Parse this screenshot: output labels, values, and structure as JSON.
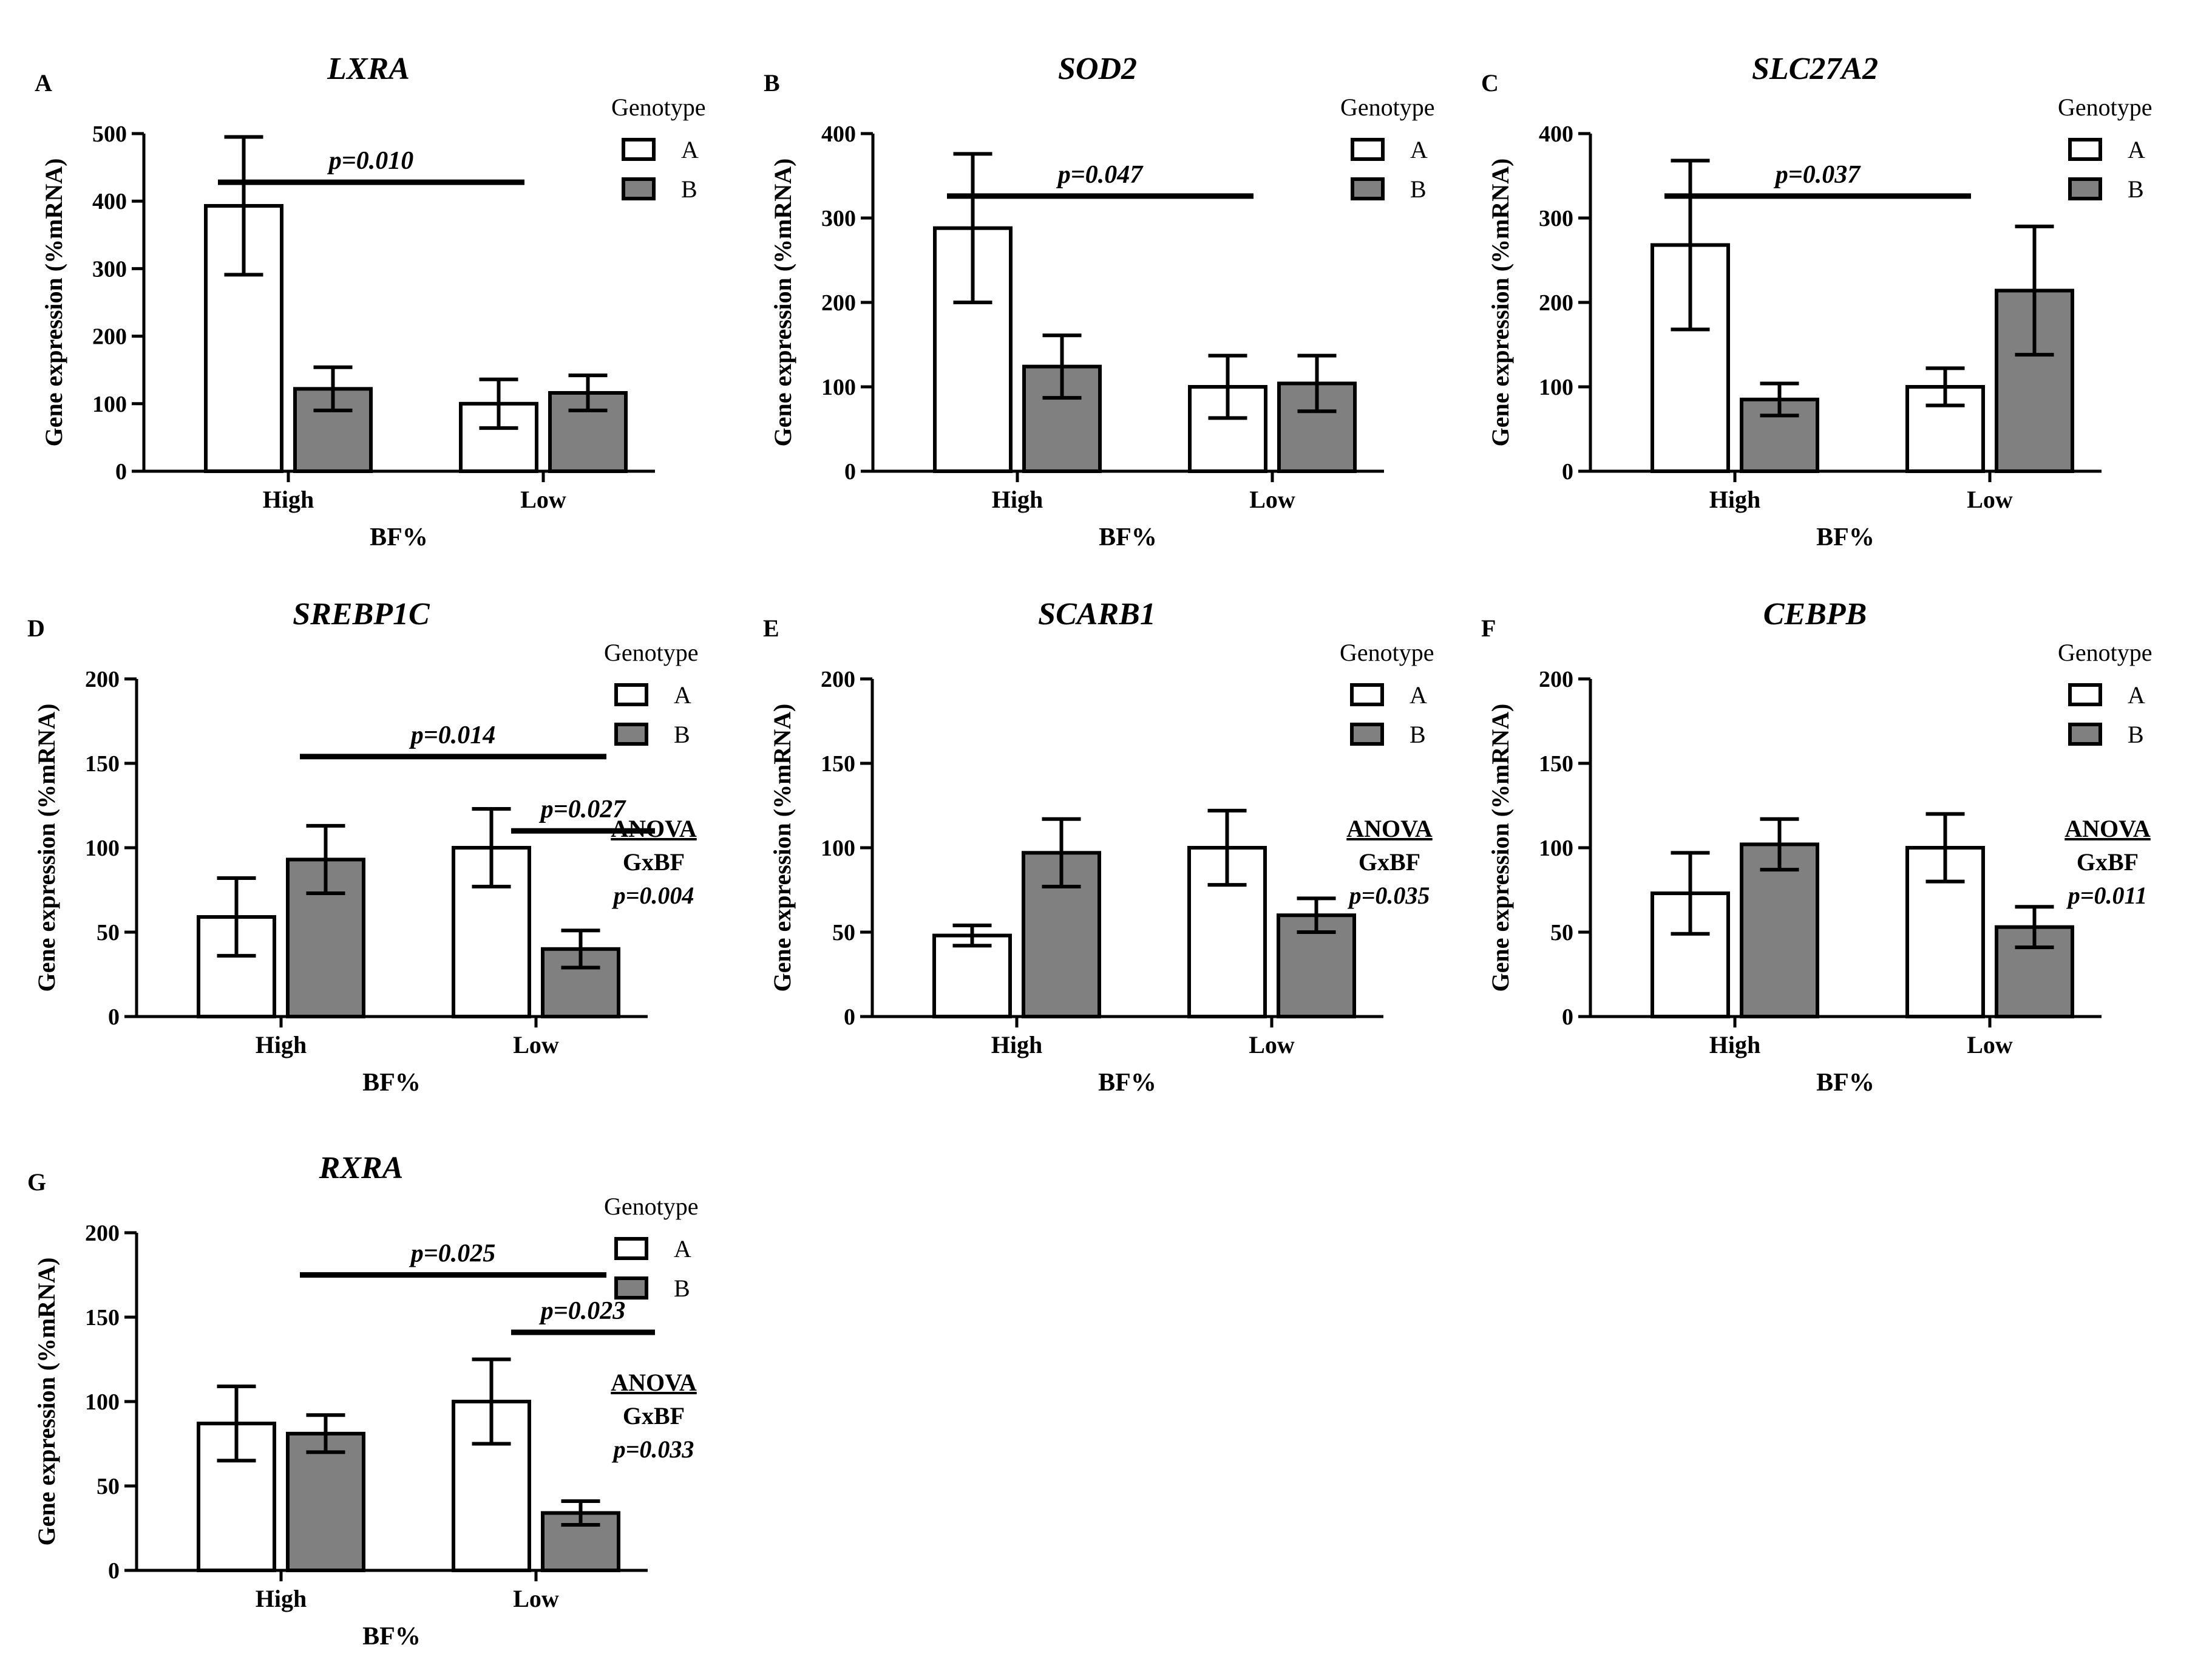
{
  "colors": {
    "A": "#ffffff",
    "B": "#808080",
    "stroke": "#000000"
  },
  "chart_data": [
    {
      "panel": "A",
      "type": "bar",
      "title": "LXRA",
      "xlabel": "BF%",
      "ylabel": "Gene expression (%mRNA)",
      "categories": [
        "High",
        "Low"
      ],
      "ylim": [
        0,
        500
      ],
      "yticks": [
        0,
        100,
        200,
        300,
        400,
        500
      ],
      "legend_title": "Genotype",
      "series": [
        {
          "name": "A",
          "values": [
            393,
            100
          ],
          "errors": [
            102,
            36
          ]
        },
        {
          "name": "B",
          "values": [
            122,
            116
          ],
          "errors": [
            32,
            26
          ]
        }
      ],
      "brackets": [
        {
          "from": [
            0,
            0
          ],
          "to": [
            1,
            0
          ],
          "label": "p=0.010",
          "y": 428
        }
      ],
      "anova": null
    },
    {
      "panel": "B",
      "type": "bar",
      "title": "SOD2",
      "xlabel": "BF%",
      "ylabel": "Gene expression (%mRNA)",
      "categories": [
        "High",
        "Low"
      ],
      "ylim": [
        0,
        400
      ],
      "yticks": [
        0,
        100,
        200,
        300,
        400
      ],
      "legend_title": "Genotype",
      "series": [
        {
          "name": "A",
          "values": [
            288,
            100
          ],
          "errors": [
            88,
            37
          ]
        },
        {
          "name": "B",
          "values": [
            124,
            104
          ],
          "errors": [
            37,
            33
          ]
        }
      ],
      "brackets": [
        {
          "from": [
            0,
            0
          ],
          "to": [
            1,
            0
          ],
          "label": "p=0.047",
          "y": 326
        }
      ],
      "anova": null
    },
    {
      "panel": "C",
      "type": "bar",
      "title": "SLC27A2",
      "xlabel": "BF%",
      "ylabel": "Gene expression (%mRNA)",
      "categories": [
        "High",
        "Low"
      ],
      "ylim": [
        0,
        400
      ],
      "yticks": [
        0,
        100,
        200,
        300,
        400
      ],
      "legend_title": "Genotype",
      "series": [
        {
          "name": "A",
          "values": [
            268,
            100
          ],
          "errors": [
            100,
            22
          ]
        },
        {
          "name": "B",
          "values": [
            85,
            214
          ],
          "errors": [
            19,
            76
          ]
        }
      ],
      "brackets": [
        {
          "from": [
            0,
            0
          ],
          "to": [
            1,
            0
          ],
          "label": "p=0.037",
          "y": 326
        }
      ],
      "anova": null
    },
    {
      "panel": "D",
      "type": "bar",
      "title": "SREBP1C",
      "xlabel": "BF%",
      "ylabel": "Gene expression (%mRNA)",
      "categories": [
        "High",
        "Low"
      ],
      "ylim": [
        0,
        200
      ],
      "yticks": [
        0,
        50,
        100,
        150,
        200
      ],
      "legend_title": "Genotype",
      "series": [
        {
          "name": "A",
          "values": [
            59,
            100
          ],
          "errors": [
            23,
            23
          ]
        },
        {
          "name": "B",
          "values": [
            93,
            40
          ],
          "errors": [
            20,
            11
          ]
        }
      ],
      "brackets": [
        {
          "from": [
            0,
            1
          ],
          "to": [
            1,
            1
          ],
          "label": "p=0.014",
          "y": 154
        },
        {
          "from": [
            1,
            0
          ],
          "to": [
            1,
            1
          ],
          "label": "p=0.027",
          "y": 110
        }
      ],
      "anova": {
        "heading": "ANOVA",
        "term": "GxBF",
        "p": "p=0.004"
      }
    },
    {
      "panel": "E",
      "type": "bar",
      "title": "SCARB1",
      "xlabel": "BF%",
      "ylabel": "Gene expression (%mRNA)",
      "categories": [
        "High",
        "Low"
      ],
      "ylim": [
        0,
        200
      ],
      "yticks": [
        0,
        50,
        100,
        150,
        200
      ],
      "legend_title": "Genotype",
      "series": [
        {
          "name": "A",
          "values": [
            48,
            100
          ],
          "errors": [
            6,
            22
          ]
        },
        {
          "name": "B",
          "values": [
            97,
            60
          ],
          "errors": [
            20,
            10
          ]
        }
      ],
      "brackets": [],
      "anova": {
        "heading": "ANOVA",
        "term": "GxBF",
        "p": "p=0.035"
      }
    },
    {
      "panel": "F",
      "type": "bar",
      "title": "CEBPB",
      "xlabel": "BF%",
      "ylabel": "Gene expression (%mRNA)",
      "categories": [
        "High",
        "Low"
      ],
      "ylim": [
        0,
        200
      ],
      "yticks": [
        0,
        50,
        100,
        150,
        200
      ],
      "legend_title": "Genotype",
      "series": [
        {
          "name": "A",
          "values": [
            73,
            100
          ],
          "errors": [
            24,
            20
          ]
        },
        {
          "name": "B",
          "values": [
            102,
            53
          ],
          "errors": [
            15,
            12
          ]
        }
      ],
      "brackets": [],
      "anova": {
        "heading": "ANOVA",
        "term": "GxBF",
        "p": "p=0.011"
      }
    },
    {
      "panel": "G",
      "type": "bar",
      "title": "RXRA",
      "xlabel": "BF%",
      "ylabel": "Gene expression (%mRNA)",
      "categories": [
        "High",
        "Low"
      ],
      "ylim": [
        0,
        200
      ],
      "yticks": [
        0,
        50,
        100,
        150,
        200
      ],
      "legend_title": "Genotype",
      "series": [
        {
          "name": "A",
          "values": [
            87,
            100
          ],
          "errors": [
            22,
            25
          ]
        },
        {
          "name": "B",
          "values": [
            81,
            34
          ],
          "errors": [
            11,
            7
          ]
        }
      ],
      "brackets": [
        {
          "from": [
            0,
            1
          ],
          "to": [
            1,
            1
          ],
          "label": "p=0.025",
          "y": 175
        },
        {
          "from": [
            1,
            0
          ],
          "to": [
            1,
            1
          ],
          "label": "p=0.023",
          "y": 141
        }
      ],
      "anova": {
        "heading": "ANOVA",
        "term": "GxBF",
        "p": "p=0.033"
      }
    }
  ]
}
